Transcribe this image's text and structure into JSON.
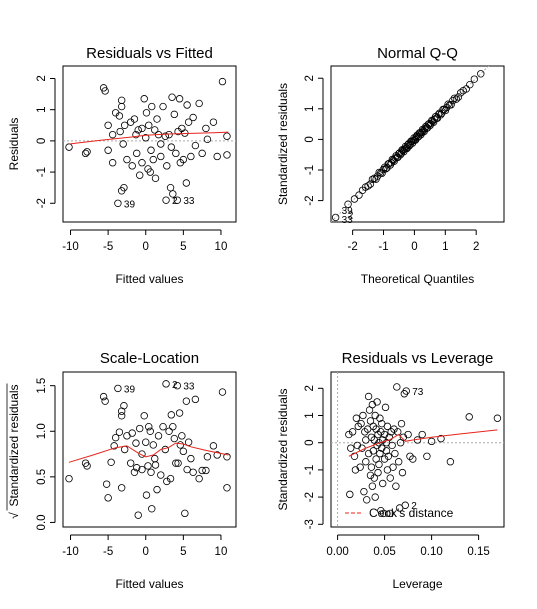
{
  "chart_data": [
    {
      "type": "scatter",
      "title": "Residuals vs Fitted",
      "xlabel": "Fitted values",
      "ylabel": "Residuals",
      "xlim": [
        -11,
        12
      ],
      "ylim": [
        -2.6,
        2.4
      ],
      "x_ticks": [
        -10,
        -5,
        0,
        5,
        10
      ],
      "y_ticks": [
        -2,
        -1,
        0,
        1,
        2
      ],
      "x_tick_labels": [
        "-10",
        "-5",
        "0",
        "5",
        "10"
      ],
      "y_tick_labels": [
        "-2",
        "-1",
        "0",
        "1",
        "2"
      ],
      "y_ticks_rotated": true,
      "points": [
        [
          -10.2,
          -0.2
        ],
        [
          -8,
          -0.4
        ],
        [
          -7.8,
          -0.35
        ],
        [
          -5.6,
          1.7
        ],
        [
          -5.4,
          1.6
        ],
        [
          -5,
          0.5
        ],
        [
          -5,
          -0.3
        ],
        [
          -4.4,
          -0.7
        ],
        [
          -4.4,
          0.2
        ],
        [
          -4,
          0.9
        ],
        [
          -3.7,
          -2.0
        ],
        [
          -3.5,
          0.8
        ],
        [
          -3.4,
          0.3
        ],
        [
          -3.2,
          1.3
        ],
        [
          -3.2,
          1.1
        ],
        [
          -3.2,
          -1.6
        ],
        [
          -3,
          -0.1
        ],
        [
          -2.9,
          -1.5
        ],
        [
          -2.8,
          0.5
        ],
        [
          -2.5,
          -0.6
        ],
        [
          -2,
          0.6
        ],
        [
          -1.8,
          -0.8
        ],
        [
          -1.5,
          0.7
        ],
        [
          -1.3,
          0.2
        ],
        [
          -1.2,
          -0.4
        ],
        [
          -1,
          0.35
        ],
        [
          -0.8,
          -1.1
        ],
        [
          -0.5,
          0.4
        ],
        [
          -0.5,
          -0.7
        ],
        [
          -0.2,
          1.35
        ],
        [
          0,
          0.1
        ],
        [
          0.1,
          0.9
        ],
        [
          0.3,
          -0.9
        ],
        [
          0.4,
          0.5
        ],
        [
          0.6,
          -1.0
        ],
        [
          0.7,
          -0.3
        ],
        [
          0.8,
          1.1
        ],
        [
          1,
          -0.6
        ],
        [
          1.2,
          0.35
        ],
        [
          1.3,
          -1.2
        ],
        [
          1.5,
          0.7
        ],
        [
          1.7,
          0.2
        ],
        [
          2,
          -0.1
        ],
        [
          2,
          -0.5
        ],
        [
          2.3,
          1.1
        ],
        [
          2.6,
          0.15
        ],
        [
          2.7,
          -1.9
        ],
        [
          2.8,
          -0.8
        ],
        [
          3.1,
          0.2
        ],
        [
          3.3,
          -1.5
        ],
        [
          3.4,
          -0.2
        ],
        [
          3.5,
          1.4
        ],
        [
          3.6,
          -1.7
        ],
        [
          3.8,
          0.85
        ],
        [
          4,
          -0.4
        ],
        [
          4.2,
          -1.9
        ],
        [
          4.3,
          0.3
        ],
        [
          4.5,
          1.35
        ],
        [
          4.6,
          -0.7
        ],
        [
          4.8,
          0.4
        ],
        [
          5,
          -0.6
        ],
        [
          5.2,
          0.25
        ],
        [
          5.4,
          -1.35
        ],
        [
          5.5,
          1.15
        ],
        [
          5.7,
          0.6
        ],
        [
          6,
          -0.5
        ],
        [
          6.3,
          0.75
        ],
        [
          6.6,
          -0.15
        ],
        [
          7.1,
          1.2
        ],
        [
          7.5,
          -0.4
        ],
        [
          8,
          0.4
        ],
        [
          8.2,
          0.05
        ],
        [
          9,
          0.6
        ],
        [
          9.5,
          -0.5
        ],
        [
          10.2,
          1.9
        ],
        [
          10.8,
          0.15
        ],
        [
          10.8,
          -0.45
        ]
      ],
      "smoother": [
        [
          -10.2,
          -0.1
        ],
        [
          -6,
          0.02
        ],
        [
          -2,
          0.12
        ],
        [
          0,
          0.18
        ],
        [
          3,
          0.22
        ],
        [
          6,
          0.24
        ],
        [
          9,
          0.26
        ],
        [
          11,
          0.28
        ]
      ],
      "point_labels": [
        {
          "text": "39",
          "x": -3.7,
          "y": -2.0
        },
        {
          "text": "2",
          "x": 2.7,
          "y": -1.9
        },
        {
          "text": "33",
          "x": 4.2,
          "y": -1.9
        }
      ]
    },
    {
      "type": "scatter",
      "title": "Normal Q-Q",
      "xlabel": "Theoretical Quantiles",
      "ylabel": "Standardized residuals",
      "xlim": [
        -2.7,
        2.9
      ],
      "ylim": [
        -2.7,
        2.4
      ],
      "x_ticks": [
        -2,
        -1,
        0,
        1,
        2
      ],
      "y_ticks": [
        -2,
        -1,
        0,
        1,
        2
      ],
      "x_tick_labels": [
        "-2",
        "-1",
        "0",
        "1",
        "2"
      ],
      "y_tick_labels": [
        "-2",
        "-1",
        "0",
        "1",
        "2"
      ],
      "y_ticks_rotated": true,
      "qq_range": [
        -2.55,
        2.55
      ],
      "qq_line": [
        [
          -2.7,
          -2.7
        ],
        [
          2.9,
          2.9
        ]
      ],
      "point_labels": [
        {
          "text": "39",
          "x": -2.55,
          "y": -2.3
        },
        {
          "text": "2",
          "x": -2.35,
          "y": -2.45
        },
        {
          "text": "33",
          "x": -2.55,
          "y": -2.6
        }
      ]
    },
    {
      "type": "scatter",
      "title": "Scale-Location",
      "xlabel": "Fitted values",
      "ylabel_sqrt_symbol": "√",
      "ylabel": "Standardized residuals",
      "xlim": [
        -11,
        12
      ],
      "ylim": [
        -0.05,
        1.65
      ],
      "x_ticks": [
        -10,
        -5,
        0,
        5,
        10
      ],
      "y_ticks": [
        0.0,
        0.5,
        1.0,
        1.5
      ],
      "x_tick_labels": [
        "-10",
        "-5",
        "0",
        "5",
        "10"
      ],
      "y_tick_labels": [
        "0.0",
        "0.5",
        "1.0",
        "1.5"
      ],
      "y_ticks_rotated": true,
      "points": [
        [
          -10.2,
          0.48
        ],
        [
          -8,
          0.65
        ],
        [
          -7.8,
          0.62
        ],
        [
          -5.6,
          1.38
        ],
        [
          -5.4,
          1.33
        ],
        [
          -5.2,
          0.42
        ],
        [
          -5,
          0.27
        ],
        [
          -4.6,
          0.66
        ],
        [
          -4.2,
          0.84
        ],
        [
          -4,
          0.93
        ],
        [
          -3.7,
          1.47
        ],
        [
          -3.5,
          0.99
        ],
        [
          -3.2,
          1.22
        ],
        [
          -3.2,
          1.17
        ],
        [
          -3.2,
          0.38
        ],
        [
          -2.9,
          1.28
        ],
        [
          -2.8,
          0.8
        ],
        [
          -2.5,
          0.95
        ],
        [
          -2,
          0.65
        ],
        [
          -1.8,
          0.98
        ],
        [
          -1.5,
          0.55
        ],
        [
          -1.3,
          0.87
        ],
        [
          -1.2,
          0.6
        ],
        [
          -1,
          0.08
        ],
        [
          -0.8,
          1.03
        ],
        [
          -0.5,
          0.75
        ],
        [
          -0.5,
          0.58
        ],
        [
          -0.2,
          1.17
        ],
        [
          0,
          0.88
        ],
        [
          0.1,
          0.3
        ],
        [
          0.3,
          0.62
        ],
        [
          0.4,
          1.05
        ],
        [
          0.6,
          1.0
        ],
        [
          0.7,
          0.55
        ],
        [
          0.8,
          0.15
        ],
        [
          1,
          0.85
        ],
        [
          1.2,
          0.7
        ],
        [
          1.3,
          0.63
        ],
        [
          1.5,
          0.36
        ],
        [
          1.7,
          0.95
        ],
        [
          2,
          0.52
        ],
        [
          2.3,
          1.05
        ],
        [
          2.6,
          0.8
        ],
        [
          2.7,
          1.52
        ],
        [
          2.8,
          0.45
        ],
        [
          3.1,
          1.0
        ],
        [
          3.3,
          0.48
        ],
        [
          3.4,
          1.18
        ],
        [
          3.6,
          1.05
        ],
        [
          3.8,
          0.92
        ],
        [
          4,
          0.65
        ],
        [
          4.2,
          1.5
        ],
        [
          4.3,
          0.65
        ],
        [
          4.5,
          1.2
        ],
        [
          4.6,
          0.85
        ],
        [
          4.8,
          0.95
        ],
        [
          5,
          0.78
        ],
        [
          5.2,
          0.1
        ],
        [
          5.4,
          1.33
        ],
        [
          5.5,
          0.58
        ],
        [
          5.7,
          0.88
        ],
        [
          6,
          0.7
        ],
        [
          6.3,
          0.55
        ],
        [
          6.6,
          1.35
        ],
        [
          7.1,
          0.48
        ],
        [
          7.5,
          0.57
        ],
        [
          8,
          0.57
        ],
        [
          8.2,
          0.72
        ],
        [
          9,
          0.84
        ],
        [
          9.5,
          0.74
        ],
        [
          10.2,
          1.43
        ],
        [
          10.8,
          0.38
        ],
        [
          10.8,
          0.72
        ]
      ],
      "smoother": [
        [
          -10.2,
          0.66
        ],
        [
          -7,
          0.74
        ],
        [
          -4,
          0.82
        ],
        [
          -2.5,
          0.84
        ],
        [
          -1,
          0.76
        ],
        [
          0,
          0.72
        ],
        [
          1,
          0.74
        ],
        [
          2,
          0.8
        ],
        [
          3,
          0.82
        ],
        [
          4,
          0.87
        ],
        [
          5,
          0.86
        ],
        [
          6,
          0.83
        ],
        [
          8,
          0.79
        ],
        [
          11,
          0.74
        ]
      ],
      "point_labels": [
        {
          "text": "39",
          "x": -3.7,
          "y": 1.47
        },
        {
          "text": "2",
          "x": 2.7,
          "y": 1.52
        },
        {
          "text": "33",
          "x": 4.2,
          "y": 1.5
        }
      ]
    },
    {
      "type": "scatter",
      "title": "Residuals vs Leverage",
      "xlabel": "Leverage",
      "ylabel": "Standardized residuals",
      "xlim": [
        -0.007,
        0.177
      ],
      "ylim": [
        -3.1,
        2.6
      ],
      "x_ticks": [
        0.0,
        0.05,
        0.1,
        0.15
      ],
      "y_ticks": [
        -3,
        -2,
        -1,
        0,
        1,
        2
      ],
      "x_tick_labels": [
        "0.00",
        "0.05",
        "0.10",
        "0.15"
      ],
      "y_tick_labels": [
        "-3",
        "-2",
        "-1",
        "0",
        "1",
        "2"
      ],
      "y_ticks_rotated": true,
      "points": [
        [
          0.012,
          0.3
        ],
        [
          0.013,
          -1.9
        ],
        [
          0.014,
          -0.2
        ],
        [
          0.016,
          0.4
        ],
        [
          0.018,
          -0.5
        ],
        [
          0.019,
          -1.0
        ],
        [
          0.02,
          0.9
        ],
        [
          0.021,
          -0.1
        ],
        [
          0.022,
          0.6
        ],
        [
          0.024,
          -0.9
        ],
        [
          0.025,
          0.7
        ],
        [
          0.026,
          -0.2
        ],
        [
          0.027,
          1.0
        ],
        [
          0.028,
          -1.8
        ],
        [
          0.029,
          0.4
        ],
        [
          0.03,
          -0.7
        ],
        [
          0.03,
          0.1
        ],
        [
          0.031,
          -2.1
        ],
        [
          0.032,
          0.5
        ],
        [
          0.033,
          -0.4
        ],
        [
          0.033,
          1.7
        ],
        [
          0.034,
          1.2
        ],
        [
          0.035,
          -1.2
        ],
        [
          0.035,
          0.8
        ],
        [
          0.036,
          -0.9
        ],
        [
          0.036,
          0.2
        ],
        [
          0.037,
          1.4
        ],
        [
          0.037,
          -1.6
        ],
        [
          0.038,
          -0.3
        ],
        [
          0.038,
          0.6
        ],
        [
          0.039,
          -1.3
        ],
        [
          0.039,
          0.1
        ],
        [
          0.04,
          1.0
        ],
        [
          0.04,
          -2.0
        ],
        [
          0.041,
          0.5
        ],
        [
          0.041,
          -0.6
        ],
        [
          0.042,
          -0.1
        ],
        [
          0.042,
          1.5
        ],
        [
          0.043,
          -1.1
        ],
        [
          0.043,
          0.3
        ],
        [
          0.044,
          -0.8
        ],
        [
          0.044,
          0.0
        ],
        [
          0.045,
          0.9
        ],
        [
          0.045,
          -0.4
        ],
        [
          0.046,
          -2.5
        ],
        [
          0.046,
          0.4
        ],
        [
          0.047,
          -0.2
        ],
        [
          0.047,
          0.7
        ],
        [
          0.048,
          -1.5
        ],
        [
          0.048,
          0.1
        ],
        [
          0.049,
          -2.6
        ],
        [
          0.05,
          0.3
        ],
        [
          0.05,
          -0.6
        ],
        [
          0.051,
          1.3
        ],
        [
          0.052,
          -0.3
        ],
        [
          0.052,
          0.0
        ],
        [
          0.053,
          -1.0
        ],
        [
          0.053,
          0.6
        ],
        [
          0.054,
          -0.5
        ],
        [
          0.055,
          0.2
        ],
        [
          0.056,
          -2.6
        ],
        [
          0.056,
          -1.3
        ],
        [
          0.057,
          0.4
        ],
        [
          0.058,
          -0.1
        ],
        [
          0.059,
          -0.9
        ],
        [
          0.06,
          0.5
        ],
        [
          0.061,
          -0.4
        ],
        [
          0.062,
          -1.6
        ],
        [
          0.063,
          2.05
        ],
        [
          0.064,
          0.4
        ],
        [
          0.065,
          -0.7
        ],
        [
          0.066,
          -2.4
        ],
        [
          0.067,
          0.0
        ],
        [
          0.068,
          0.7
        ],
        [
          0.069,
          -1.1
        ],
        [
          0.07,
          0.2
        ],
        [
          0.071,
          1.8
        ],
        [
          0.072,
          -2.3
        ],
        [
          0.073,
          1.9
        ],
        [
          0.075,
          0.3
        ],
        [
          0.077,
          -0.5
        ],
        [
          0.08,
          -0.6
        ],
        [
          0.085,
          0.1
        ],
        [
          0.09,
          0.3
        ],
        [
          0.095,
          -0.5
        ],
        [
          0.1,
          0.05
        ],
        [
          0.11,
          0.15
        ],
        [
          0.12,
          -0.7
        ],
        [
          0.14,
          0.95
        ],
        [
          0.17,
          0.9
        ]
      ],
      "smoother": [
        [
          0.012,
          -0.5
        ],
        [
          0.03,
          -0.2
        ],
        [
          0.045,
          0.0
        ],
        [
          0.055,
          0.1
        ],
        [
          0.065,
          0.3
        ],
        [
          0.072,
          0.05
        ],
        [
          0.08,
          0.1
        ],
        [
          0.1,
          0.2
        ],
        [
          0.13,
          0.32
        ],
        [
          0.17,
          0.47
        ]
      ],
      "point_labels": [
        {
          "text": "73",
          "x": 0.073,
          "y": 1.9
        },
        {
          "text": "2",
          "x": 0.072,
          "y": -2.3
        }
      ],
      "legend": {
        "text": "Cook's distance",
        "position": "bottom-left"
      }
    }
  ]
}
